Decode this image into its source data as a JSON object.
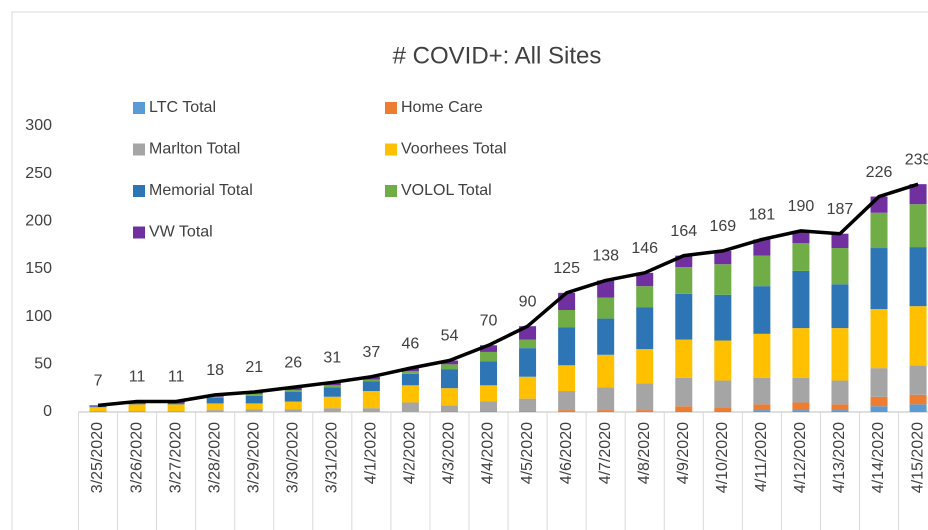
{
  "chart_data": {
    "type": "bar",
    "stacked": true,
    "title": "# COVID+: All Sites",
    "categories": [
      "3/25/2020",
      "3/26/2020",
      "3/27/2020",
      "3/28/2020",
      "3/29/2020",
      "3/30/2020",
      "3/31/2020",
      "4/1/2020",
      "4/2/2020",
      "4/3/2020",
      "4/4/2020",
      "4/5/2020",
      "4/6/2020",
      "4/7/2020",
      "4/8/2020",
      "4/9/2020",
      "4/10/2020",
      "4/11/2020",
      "4/12/2020",
      "4/13/2020",
      "4/14/2020",
      "4/15/2020"
    ],
    "series": [
      {
        "name": "LTC Total",
        "color": "#5b9bd5",
        "values": [
          0,
          0,
          0,
          0,
          0,
          0,
          0,
          0,
          0,
          0,
          0,
          0,
          0,
          0,
          0,
          1,
          1,
          2,
          2,
          2,
          6,
          8
        ]
      },
      {
        "name": "Home Care",
        "color": "#ed7d31",
        "values": [
          0,
          0,
          0,
          0,
          0,
          0,
          0,
          0,
          0,
          1,
          1,
          1,
          2,
          2,
          2,
          5,
          4,
          6,
          8,
          6,
          10,
          10
        ]
      },
      {
        "name": "Marlton Total",
        "color": "#a5a5a5",
        "values": [
          1,
          1,
          1,
          2,
          3,
          3,
          4,
          4,
          10,
          6,
          10,
          13,
          20,
          24,
          28,
          30,
          28,
          28,
          26,
          25,
          30,
          31
        ]
      },
      {
        "name": "Voorhees Total",
        "color": "#ffc000",
        "values": [
          4,
          7,
          7,
          7,
          6,
          8,
          12,
          18,
          18,
          18,
          17,
          23,
          27,
          34,
          36,
          40,
          42,
          46,
          52,
          55,
          62,
          62
        ]
      },
      {
        "name": "Memorial Total",
        "color": "#2e75b6",
        "values": [
          1,
          1,
          1,
          6,
          8,
          10,
          10,
          10,
          12,
          20,
          25,
          30,
          40,
          38,
          44,
          48,
          48,
          50,
          60,
          46,
          64,
          62
        ]
      },
      {
        "name": "VOLOL Total",
        "color": "#70ad47",
        "values": [
          0,
          0,
          0,
          1,
          2,
          2,
          2,
          2,
          3,
          5,
          10,
          9,
          18,
          22,
          22,
          28,
          32,
          32,
          29,
          38,
          37,
          45
        ]
      },
      {
        "name": "VW Total",
        "color": "#7030a0",
        "values": [
          1,
          2,
          2,
          2,
          2,
          3,
          3,
          3,
          3,
          4,
          7,
          14,
          18,
          18,
          14,
          12,
          14,
          17,
          13,
          15,
          17,
          21
        ]
      }
    ],
    "total_line": {
      "color": "#000000",
      "values": [
        7,
        11,
        11,
        18,
        21,
        26,
        31,
        37,
        46,
        54,
        70,
        90,
        125,
        138,
        146,
        164,
        169,
        181,
        190,
        187,
        226,
        239
      ]
    },
    "ylim": [
      0,
      300
    ],
    "yticks": [
      0,
      50,
      100,
      150,
      200,
      250,
      300
    ],
    "grid": false,
    "legend": "top-left"
  }
}
